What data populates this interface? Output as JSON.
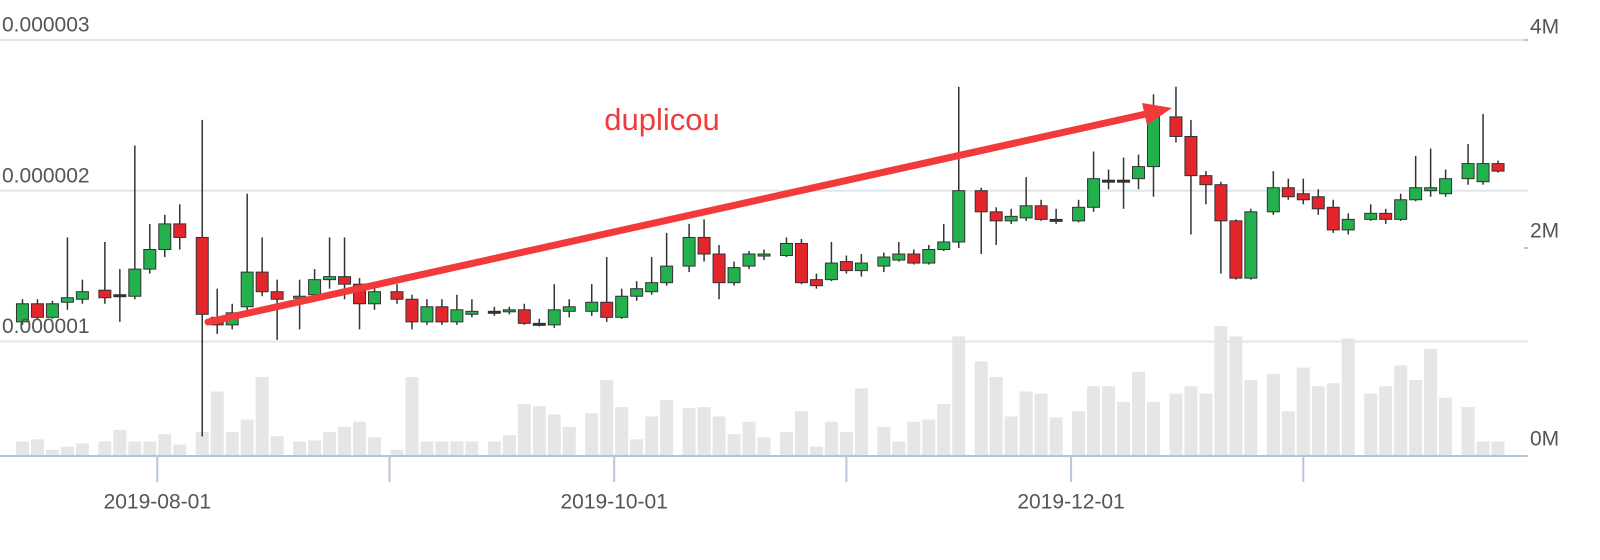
{
  "chart_data": {
    "type": "candlestick",
    "annotation": "duplicou",
    "annotation_color": "#f23a3a",
    "up_color": "#22b14c",
    "down_color": "#e3262b",
    "flat_color": "#333333",
    "volume_color": "#e6e6e6",
    "grid": true,
    "xlim": [
      "2019-07-11",
      "2020-01-31"
    ],
    "xticks": [
      "2019-08-01",
      "2019-10-01",
      "2019-12-01"
    ],
    "xticks_minor": [
      "2019-09-01",
      "2019-11-01",
      "2020-01-01"
    ],
    "ylim": [
      2.4e-07,
      3e-06
    ],
    "yticks": [
      {
        "value": 1e-06,
        "label": "0.000001"
      },
      {
        "value": 2e-06,
        "label": "0.000002"
      },
      {
        "value": 3e-06,
        "label": "0.000003"
      }
    ],
    "y2lim": [
      0,
      4000000
    ],
    "y2ticks": [
      {
        "value": 0,
        "label": "0M"
      },
      {
        "value": 2000000,
        "label": "2M"
      },
      {
        "value": 4000000,
        "label": "4M"
      }
    ],
    "x": [
      "2019-07-14",
      "2019-07-16",
      "2019-07-18",
      "2019-07-20",
      "2019-07-22",
      "2019-07-25",
      "2019-07-27",
      "2019-07-29",
      "2019-07-31",
      "2019-08-02",
      "2019-08-04",
      "2019-08-07",
      "2019-08-09",
      "2019-08-11",
      "2019-08-13",
      "2019-08-15",
      "2019-08-17",
      "2019-08-20",
      "2019-08-22",
      "2019-08-24",
      "2019-08-26",
      "2019-08-28",
      "2019-08-30",
      "2019-09-02",
      "2019-09-04",
      "2019-09-06",
      "2019-09-08",
      "2019-09-10",
      "2019-09-12",
      "2019-09-15",
      "2019-09-17",
      "2019-09-19",
      "2019-09-21",
      "2019-09-23",
      "2019-09-25",
      "2019-09-28",
      "2019-09-30",
      "2019-10-02",
      "2019-10-04",
      "2019-10-06",
      "2019-10-08",
      "2019-10-11",
      "2019-10-13",
      "2019-10-15",
      "2019-10-17",
      "2019-10-19",
      "2019-10-21",
      "2019-10-24",
      "2019-10-26",
      "2019-10-28",
      "2019-10-30",
      "2019-11-01",
      "2019-11-03",
      "2019-11-06",
      "2019-11-08",
      "2019-11-10",
      "2019-11-12",
      "2019-11-14",
      "2019-11-16",
      "2019-11-19",
      "2019-11-21",
      "2019-11-23",
      "2019-11-25",
      "2019-11-27",
      "2019-11-29",
      "2019-12-02",
      "2019-12-04",
      "2019-12-06",
      "2019-12-08",
      "2019-12-10",
      "2019-12-12",
      "2019-12-15",
      "2019-12-17",
      "2019-12-19",
      "2019-12-21",
      "2019-12-23",
      "2019-12-25",
      "2019-12-28",
      "2019-12-30",
      "2020-01-01",
      "2020-01-03",
      "2020-01-05",
      "2020-01-07",
      "2020-01-10",
      "2020-01-12",
      "2020-01-14",
      "2020-01-16",
      "2020-01-18",
      "2020-01-20",
      "2020-01-23",
      "2020-01-25",
      "2020-01-27"
    ],
    "ohlc": [
      [
        1.13e-06,
        1.28e-06,
        1.11e-06,
        1.25e-06
      ],
      [
        1.25e-06,
        1.28e-06,
        1.15e-06,
        1.16e-06
      ],
      [
        1.16e-06,
        1.27e-06,
        1.15e-06,
        1.25e-06
      ],
      [
        1.26e-06,
        1.69e-06,
        1.21e-06,
        1.29e-06
      ],
      [
        1.28e-06,
        1.41e-06,
        1.25e-06,
        1.33e-06
      ],
      [
        1.34e-06,
        1.66e-06,
        1.25e-06,
        1.29e-06
      ],
      [
        1.31e-06,
        1.48e-06,
        1.13e-06,
        1.31e-06
      ],
      [
        1.3e-06,
        2.3e-06,
        1.28e-06,
        1.48e-06
      ],
      [
        1.48e-06,
        1.78e-06,
        1.45e-06,
        1.61e-06
      ],
      [
        1.61e-06,
        1.84e-06,
        1.56e-06,
        1.78e-06
      ],
      [
        1.78e-06,
        1.91e-06,
        1.61e-06,
        1.69e-06
      ],
      [
        1.69e-06,
        2.47e-06,
        3.7e-07,
        1.18e-06
      ],
      [
        1.16e-06,
        1.35e-06,
        1.05e-06,
        1.11e-06
      ],
      [
        1.11e-06,
        1.25e-06,
        1.08e-06,
        1.19e-06
      ],
      [
        1.23e-06,
        1.98e-06,
        1.2e-06,
        1.46e-06
      ],
      [
        1.46e-06,
        1.69e-06,
        1.3e-06,
        1.33e-06
      ],
      [
        1.33e-06,
        1.41e-06,
        1.01e-06,
        1.28e-06
      ],
      [
        1.29e-06,
        1.41e-06,
        1.08e-06,
        1.3e-06
      ],
      [
        1.31e-06,
        1.48e-06,
        1.28e-06,
        1.41e-06
      ],
      [
        1.41e-06,
        1.69e-06,
        1.35e-06,
        1.43e-06
      ],
      [
        1.43e-06,
        1.69e-06,
        1.28e-06,
        1.38e-06
      ],
      [
        1.38e-06,
        1.42e-06,
        1.08e-06,
        1.25e-06
      ],
      [
        1.25e-06,
        1.38e-06,
        1.21e-06,
        1.33e-06
      ],
      [
        1.33e-06,
        1.38e-06,
        1.25e-06,
        1.28e-06
      ],
      [
        1.28e-06,
        1.31e-06,
        1.08e-06,
        1.13e-06
      ],
      [
        1.13e-06,
        1.28e-06,
        1.11e-06,
        1.23e-06
      ],
      [
        1.23e-06,
        1.28e-06,
        1.11e-06,
        1.13e-06
      ],
      [
        1.13e-06,
        1.31e-06,
        1.11e-06,
        1.21e-06
      ],
      [
        1.18e-06,
        1.28e-06,
        1.16e-06,
        1.2e-06
      ],
      [
        1.2e-06,
        1.23e-06,
        1.17e-06,
        1.2e-06
      ],
      [
        1.2e-06,
        1.23e-06,
        1.18e-06,
        1.21e-06
      ],
      [
        1.21e-06,
        1.25e-06,
        1.11e-06,
        1.12e-06
      ],
      [
        1.12e-06,
        1.15e-06,
        1.1e-06,
        1.12e-06
      ],
      [
        1.11e-06,
        1.38e-06,
        1.09e-06,
        1.21e-06
      ],
      [
        1.2e-06,
        1.28e-06,
        1.16e-06,
        1.23e-06
      ],
      [
        1.2e-06,
        1.38e-06,
        1.17e-06,
        1.26e-06
      ],
      [
        1.26e-06,
        1.56e-06,
        1.13e-06,
        1.16e-06
      ],
      [
        1.16e-06,
        1.35e-06,
        1.15e-06,
        1.3e-06
      ],
      [
        1.3e-06,
        1.4e-06,
        1.27e-06,
        1.35e-06
      ],
      [
        1.33e-06,
        1.56e-06,
        1.31e-06,
        1.39e-06
      ],
      [
        1.39e-06,
        1.72e-06,
        1.37e-06,
        1.5e-06
      ],
      [
        1.5e-06,
        1.78e-06,
        1.46e-06,
        1.69e-06
      ],
      [
        1.69e-06,
        1.81e-06,
        1.53e-06,
        1.58e-06
      ],
      [
        1.58e-06,
        1.64e-06,
        1.28e-06,
        1.39e-06
      ],
      [
        1.39e-06,
        1.53e-06,
        1.37e-06,
        1.49e-06
      ],
      [
        1.5e-06,
        1.6e-06,
        1.48e-06,
        1.58e-06
      ],
      [
        1.57e-06,
        1.61e-06,
        1.54e-06,
        1.58e-06
      ],
      [
        1.57e-06,
        1.69e-06,
        1.56e-06,
        1.65e-06
      ],
      [
        1.65e-06,
        1.68e-06,
        1.38e-06,
        1.39e-06
      ],
      [
        1.41e-06,
        1.45e-06,
        1.35e-06,
        1.37e-06
      ],
      [
        1.41e-06,
        1.66e-06,
        1.4e-06,
        1.52e-06
      ],
      [
        1.53e-06,
        1.57e-06,
        1.45e-06,
        1.47e-06
      ],
      [
        1.47e-06,
        1.58e-06,
        1.43e-06,
        1.52e-06
      ],
      [
        1.5e-06,
        1.59e-06,
        1.46e-06,
        1.56e-06
      ],
      [
        1.54e-06,
        1.66e-06,
        1.53e-06,
        1.58e-06
      ],
      [
        1.58e-06,
        1.61e-06,
        1.51e-06,
        1.52e-06
      ],
      [
        1.52e-06,
        1.64e-06,
        1.51e-06,
        1.61e-06
      ],
      [
        1.61e-06,
        1.78e-06,
        1.6e-06,
        1.66e-06
      ],
      [
        1.66e-06,
        2.69e-06,
        1.62e-06,
        2e-06
      ],
      [
        2e-06,
        2.02e-06,
        1.58e-06,
        1.86e-06
      ],
      [
        1.86e-06,
        1.89e-06,
        1.64e-06,
        1.8e-06
      ],
      [
        1.8e-06,
        1.88e-06,
        1.78e-06,
        1.83e-06
      ],
      [
        1.82e-06,
        2.09e-06,
        1.8e-06,
        1.9e-06
      ],
      [
        1.9e-06,
        1.94e-06,
        1.8e-06,
        1.81e-06
      ],
      [
        1.81e-06,
        1.88e-06,
        1.78e-06,
        1.81e-06
      ],
      [
        1.8e-06,
        1.94e-06,
        1.79e-06,
        1.89e-06
      ],
      [
        1.89e-06,
        2.26e-06,
        1.86e-06,
        2.08e-06
      ],
      [
        2.07e-06,
        2.14e-06,
        2.01e-06,
        2.07e-06
      ],
      [
        2.07e-06,
        2.22e-06,
        1.88e-06,
        2.07e-06
      ],
      [
        2.08e-06,
        2.24e-06,
        2.01e-06,
        2.16e-06
      ],
      [
        2.16e-06,
        2.64e-06,
        1.96e-06,
        2.49e-06
      ],
      [
        2.49e-06,
        2.69e-06,
        2.32e-06,
        2.36e-06
      ],
      [
        2.36e-06,
        2.47e-06,
        1.71e-06,
        2.1e-06
      ],
      [
        2.1e-06,
        2.13e-06,
        1.91e-06,
        2.04e-06
      ],
      [
        2.04e-06,
        2.06e-06,
        1.45e-06,
        1.8e-06
      ],
      [
        1.8e-06,
        1.81e-06,
        1.41e-06,
        1.42e-06
      ],
      [
        1.42e-06,
        1.88e-06,
        1.41e-06,
        1.86e-06
      ],
      [
        1.86e-06,
        2.13e-06,
        1.84e-06,
        2.02e-06
      ],
      [
        2.02e-06,
        2.08e-06,
        1.94e-06,
        1.96e-06
      ],
      [
        1.98e-06,
        2.08e-06,
        1.91e-06,
        1.94e-06
      ],
      [
        1.96e-06,
        2.01e-06,
        1.84e-06,
        1.88e-06
      ],
      [
        1.89e-06,
        1.94e-06,
        1.72e-06,
        1.74e-06
      ],
      [
        1.74e-06,
        1.85e-06,
        1.71e-06,
        1.81e-06
      ],
      [
        1.81e-06,
        1.91e-06,
        1.8e-06,
        1.85e-06
      ],
      [
        1.85e-06,
        1.88e-06,
        1.78e-06,
        1.81e-06
      ],
      [
        1.81e-06,
        1.98e-06,
        1.8e-06,
        1.94e-06
      ],
      [
        1.94e-06,
        2.23e-06,
        1.93e-06,
        2.02e-06
      ],
      [
        2e-06,
        2.28e-06,
        1.96e-06,
        2.02e-06
      ],
      [
        1.98e-06,
        2.14e-06,
        1.96e-06,
        2.08e-06
      ],
      [
        2.08e-06,
        2.31e-06,
        2.04e-06,
        2.18e-06
      ],
      [
        2.06e-06,
        2.51e-06,
        2.04e-06,
        2.18e-06
      ],
      [
        2.18e-06,
        2.2e-06,
        2.12e-06,
        2.13e-06
      ]
    ],
    "volume": [
      140000,
      160000,
      60000,
      90000,
      120000,
      140000,
      250000,
      140000,
      140000,
      210000,
      110000,
      230000,
      620000,
      230000,
      350000,
      760000,
      190000,
      140000,
      150000,
      230000,
      280000,
      330000,
      180000,
      60000,
      760000,
      140000,
      140000,
      140000,
      140000,
      140000,
      200000,
      500000,
      480000,
      400000,
      280000,
      410000,
      730000,
      470000,
      160000,
      380000,
      540000,
      460000,
      470000,
      380000,
      210000,
      330000,
      180000,
      230000,
      430000,
      90000,
      330000,
      230000,
      650000,
      280000,
      140000,
      330000,
      350000,
      500000,
      1150000,
      910000,
      760000,
      380000,
      620000,
      600000,
      370000,
      430000,
      670000,
      670000,
      520000,
      810000,
      520000,
      600000,
      670000,
      600000,
      1250000,
      1150000,
      730000,
      790000,
      430000,
      850000,
      670000,
      700000,
      1130000,
      600000,
      670000,
      870000,
      730000,
      1030000,
      560000,
      470000,
      140000,
      140000
    ]
  }
}
